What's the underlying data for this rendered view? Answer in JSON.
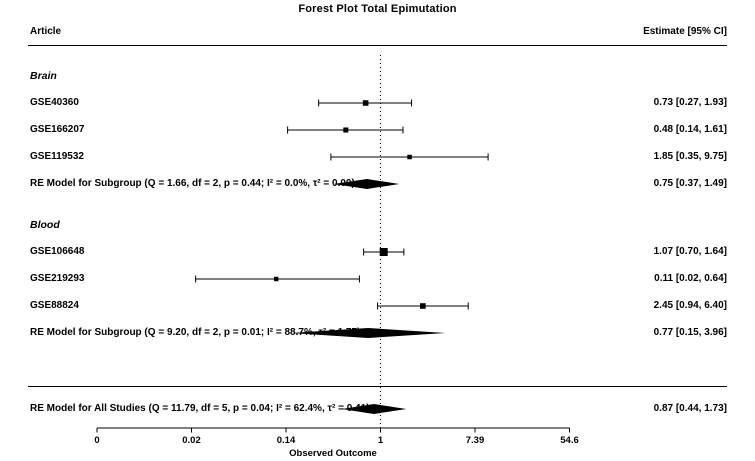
{
  "title": "Forest Plot Total Epimutation",
  "columns": {
    "left": "Article",
    "right": "Estimate [95% CI]"
  },
  "colors": {
    "ink": "#000000",
    "background": "#ffffff"
  },
  "axis": {
    "label": "Observed Outcome",
    "scale": "log",
    "ref_line": 1,
    "ticks": [
      {
        "label": "0",
        "ln": -6
      },
      {
        "label": "0.02",
        "ln": -4
      },
      {
        "label": "0.14",
        "ln": -2
      },
      {
        "label": "1",
        "ln": 0
      },
      {
        "label": "7.39",
        "ln": 2
      },
      {
        "label": "54.6",
        "ln": 4
      }
    ]
  },
  "chart_data": {
    "type": "forest",
    "title": "Forest Plot Total Epimutation",
    "xlabel": "Observed Outcome",
    "x_scale": "log",
    "x_tick_labels": [
      "0",
      "0.02",
      "0.14",
      "1",
      "7.39",
      "54.6"
    ],
    "reference_value": 1,
    "groups": [
      {
        "name": "Brain",
        "studies": [
          {
            "label": "GSE40360",
            "estimate": 0.73,
            "ci_low": 0.27,
            "ci_high": 1.93,
            "estimate_text": "0.73 [0.27, 1.93]"
          },
          {
            "label": "GSE166207",
            "estimate": 0.48,
            "ci_low": 0.14,
            "ci_high": 1.61,
            "estimate_text": "0.48 [0.14, 1.61]"
          },
          {
            "label": "GSE119532",
            "estimate": 1.85,
            "ci_low": 0.35,
            "ci_high": 9.75,
            "estimate_text": "1.85 [0.35, 9.75]"
          }
        ],
        "summary": {
          "label": "RE Model for Subgroup (Q = 1.66, df = 2, p = 0.44; I² = 0.0%, τ² = 0.00)",
          "estimate": 0.75,
          "ci_low": 0.37,
          "ci_high": 1.49,
          "estimate_text": "0.75 [0.37, 1.49]"
        }
      },
      {
        "name": "Blood",
        "studies": [
          {
            "label": "GSE106648",
            "estimate": 1.07,
            "ci_low": 0.7,
            "ci_high": 1.64,
            "estimate_text": "1.07 [0.70, 1.64]"
          },
          {
            "label": "GSE219293",
            "estimate": 0.11,
            "ci_low": 0.02,
            "ci_high": 0.64,
            "estimate_text": "0.11 [0.02, 0.64]"
          },
          {
            "label": "GSE88824",
            "estimate": 2.45,
            "ci_low": 0.94,
            "ci_high": 6.4,
            "estimate_text": "2.45 [0.94, 6.40]"
          }
        ],
        "summary": {
          "label": "RE Model for Subgroup (Q = 9.20, df = 2, p = 0.01; I² = 88.7%, τ² = 1.77)",
          "estimate": 0.77,
          "ci_low": 0.15,
          "ci_high": 3.96,
          "estimate_text": "0.77 [0.15, 3.96]"
        }
      }
    ],
    "overall": {
      "label": "RE Model for All Studies (Q = 11.79, df = 5, p = 0.04; I² = 62.4%, τ² = 0.41)",
      "estimate": 0.87,
      "ci_low": 0.44,
      "ci_high": 1.73,
      "estimate_text": "0.87 [0.44, 1.73]"
    }
  }
}
